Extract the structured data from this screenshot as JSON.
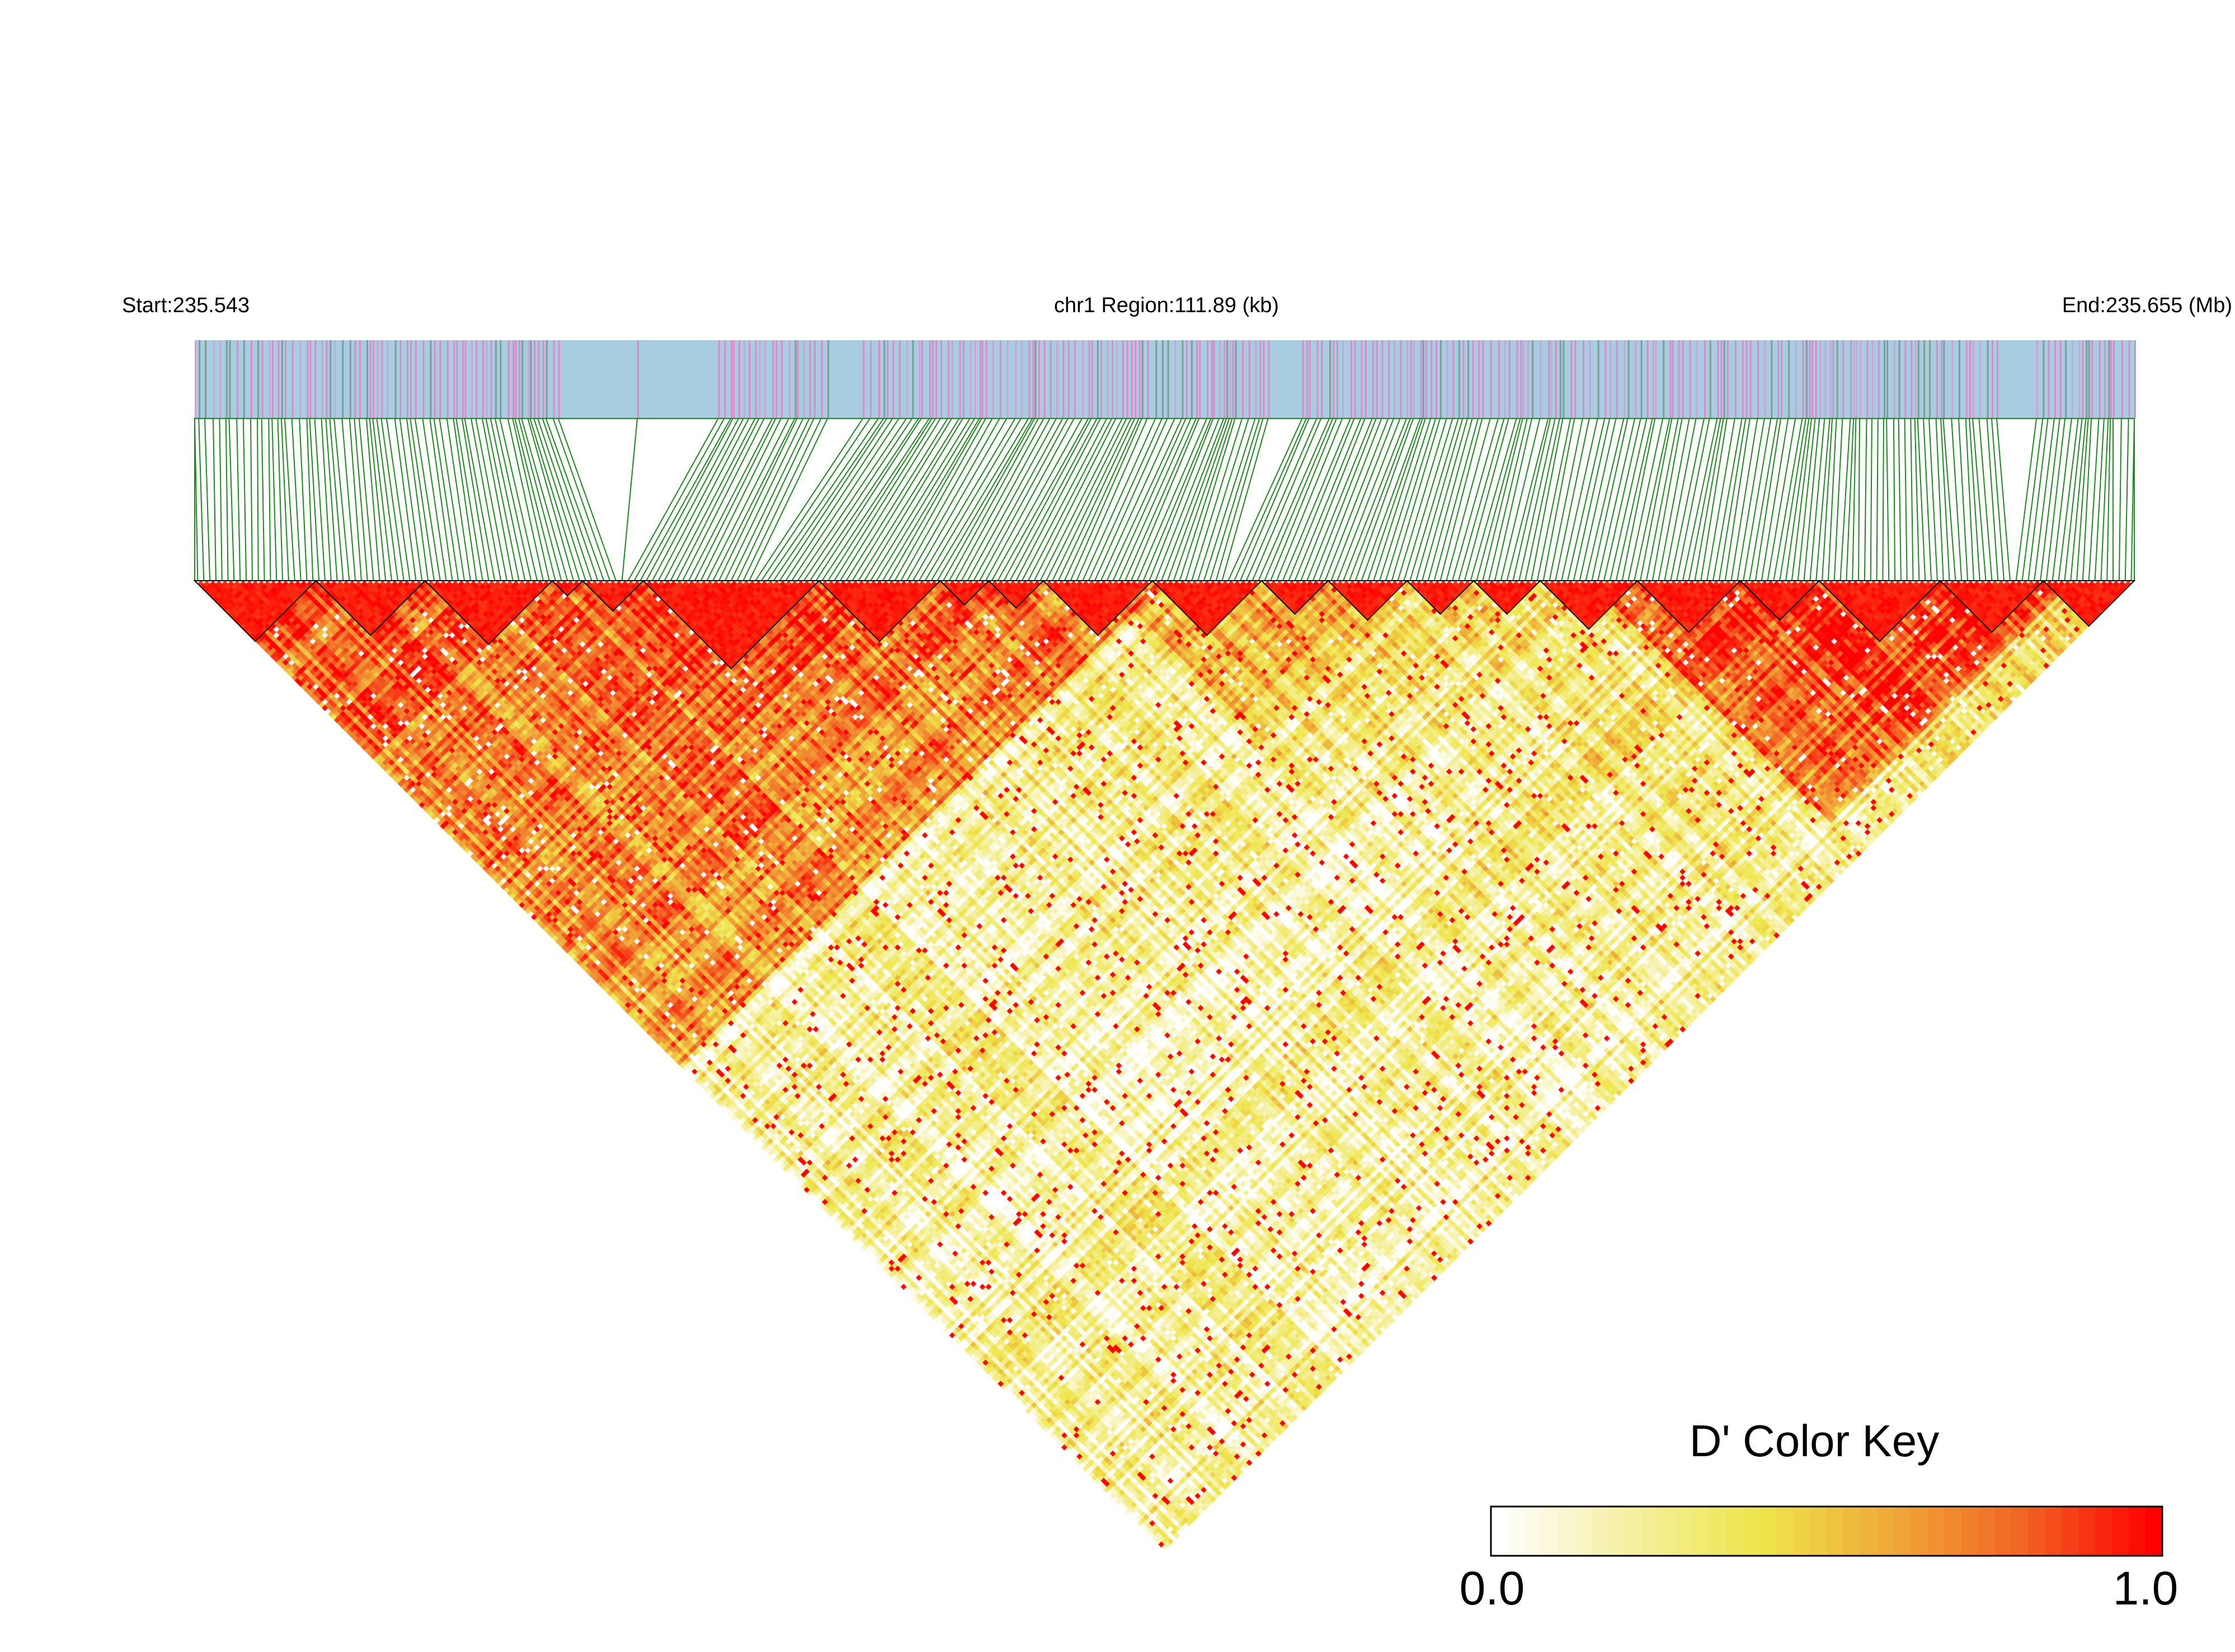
{
  "chart_data": {
    "type": "heatmap",
    "title": "",
    "region_label": "chr1 Region:111.89 (kb)",
    "start_label": "Start:235.543",
    "end_label": "End:235.655 (Mb)",
    "start_mb": 235.543,
    "end_mb": 235.655,
    "region_kb": 111.89,
    "snp_count": 320,
    "metric": "D'",
    "legend": {
      "title": "D' Color Key",
      "min_label": "0.0",
      "max_label": "1.0",
      "min": 0.0,
      "max": 1.0,
      "placement": "bottom-right"
    },
    "haplotype_blocks_snp_index": [
      [
        0,
        20
      ],
      [
        20,
        38
      ],
      [
        38,
        59
      ],
      [
        59,
        64
      ],
      [
        64,
        74
      ],
      [
        74,
        103
      ],
      [
        103,
        123
      ],
      [
        123,
        131
      ],
      [
        131,
        140
      ],
      [
        140,
        158
      ],
      [
        158,
        176
      ],
      [
        176,
        187
      ],
      [
        187,
        200
      ],
      [
        200,
        211
      ],
      [
        211,
        222
      ],
      [
        222,
        238
      ],
      [
        238,
        255
      ],
      [
        255,
        268
      ],
      [
        268,
        288
      ],
      [
        288,
        305
      ],
      [
        305,
        320
      ]
    ],
    "ld_zones_snp_index": [
      {
        "from": 0,
        "to": 160,
        "strength": 0.82
      },
      {
        "from": 60,
        "to": 115,
        "strength": 0.95
      },
      {
        "from": 230,
        "to": 310,
        "strength": 0.9
      },
      {
        "from": 150,
        "to": 200,
        "strength": 0.6
      }
    ],
    "colors": {
      "track_background": "#a8cde0",
      "snp_tick_pink": "#d98bcb",
      "snp_tick_gray": "#7f9c98",
      "connector_lines": "#1a8a1a",
      "color_scale": [
        "#ffffff",
        "#f5f0a0",
        "#eee64a",
        "#f0a838",
        "#f26424",
        "#ff0000"
      ],
      "block_outline": "#000000"
    }
  }
}
